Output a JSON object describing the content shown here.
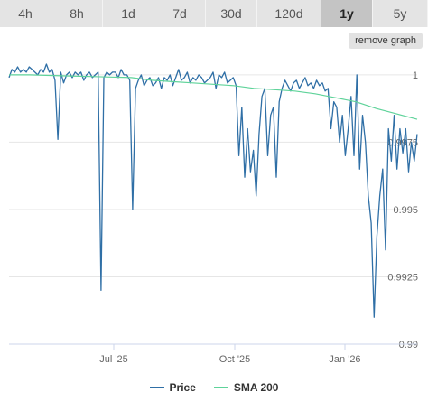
{
  "tabs": [
    {
      "label": "4h",
      "active": false
    },
    {
      "label": "8h",
      "active": false
    },
    {
      "label": "1d",
      "active": false
    },
    {
      "label": "7d",
      "active": false
    },
    {
      "label": "30d",
      "active": false
    },
    {
      "label": "120d",
      "active": false
    },
    {
      "label": "1y",
      "active": true
    },
    {
      "label": "5y",
      "active": false
    }
  ],
  "remove_graph_label": "remove graph",
  "legend": [
    {
      "name": "Price",
      "color": "#2f6fa6"
    },
    {
      "name": "SMA 200",
      "color": "#5fd39a"
    }
  ],
  "chart_data": {
    "type": "line",
    "xlabel": "",
    "ylabel": "",
    "x_ticks": [
      "Jul '25",
      "Oct '25",
      "Jan '26"
    ],
    "y_ticks": [
      "1",
      "0.9975",
      "0.995",
      "0.9925",
      "0.99"
    ],
    "ylim": [
      0.99,
      1.0005
    ],
    "grid": "horizontal",
    "legend_position": "bottom",
    "series": [
      {
        "name": "Price",
        "color": "#2f6fa6",
        "values": [
          0.9999,
          1.0002,
          1.0001,
          1.0003,
          1.0001,
          1.0002,
          1.0001,
          1.0003,
          1.0002,
          1.0001,
          1.0,
          1.0002,
          1.0001,
          1.0004,
          1.0001,
          1.0002,
          0.9998,
          0.9976,
          1.0001,
          0.9997,
          1.0,
          1.0001,
          0.9999,
          1.0001,
          1.0,
          1.0001,
          0.9998,
          1.0,
          1.0001,
          0.9999,
          1.0,
          1.0001,
          0.992,
          0.9999,
          1.0001,
          1.0,
          1.0001,
          1.0001,
          0.9999,
          1.0002,
          1.0,
          1.0,
          0.9998,
          0.995,
          0.9995,
          0.9998,
          1.0,
          0.9996,
          0.9998,
          0.9999,
          0.9996,
          0.9997,
          0.9999,
          0.9995,
          0.9999,
          0.9998,
          1.0,
          0.9996,
          0.9999,
          1.0002,
          0.9998,
          0.9999,
          1.0001,
          0.9997,
          0.9999,
          0.9998,
          1.0,
          0.9999,
          0.9997,
          0.9998,
          0.9999,
          1.0001,
          0.9995,
          1.0,
          0.9999,
          1.0001,
          0.9997,
          0.9998,
          0.9999,
          0.9996,
          0.997,
          0.9988,
          0.9962,
          0.998,
          0.9964,
          0.9972,
          0.9955,
          0.9978,
          0.9992,
          0.9995,
          0.997,
          0.9985,
          0.9988,
          0.9962,
          0.999,
          0.9995,
          0.9998,
          0.9996,
          0.9994,
          0.9997,
          0.9998,
          0.9995,
          0.9997,
          0.9999,
          0.9996,
          0.9997,
          0.9995,
          0.9998,
          0.9996,
          0.9997,
          0.9994,
          0.9995,
          0.998,
          0.999,
          0.9988,
          0.9975,
          0.9985,
          0.997,
          0.998,
          0.9992,
          0.997,
          1.0,
          0.9965,
          0.9985,
          0.9975,
          0.9955,
          0.9945,
          0.991,
          0.994,
          0.9955,
          0.9965,
          0.9935,
          0.998,
          0.9968,
          0.9985,
          0.9965,
          0.998,
          0.9971,
          0.998,
          0.9964,
          0.9975,
          0.9968,
          0.9978
        ]
      },
      {
        "name": "SMA 200",
        "color": "#5fd39a",
        "values": [
          1.0,
          1.0,
          0.99998,
          0.99996,
          0.99994,
          0.99992,
          0.9999,
          0.9998,
          0.99975,
          0.9997,
          0.99965,
          0.9996,
          0.9995,
          0.99945,
          0.9994,
          0.9993,
          0.99915,
          0.999,
          0.99875,
          0.99855,
          0.99835
        ]
      }
    ]
  }
}
